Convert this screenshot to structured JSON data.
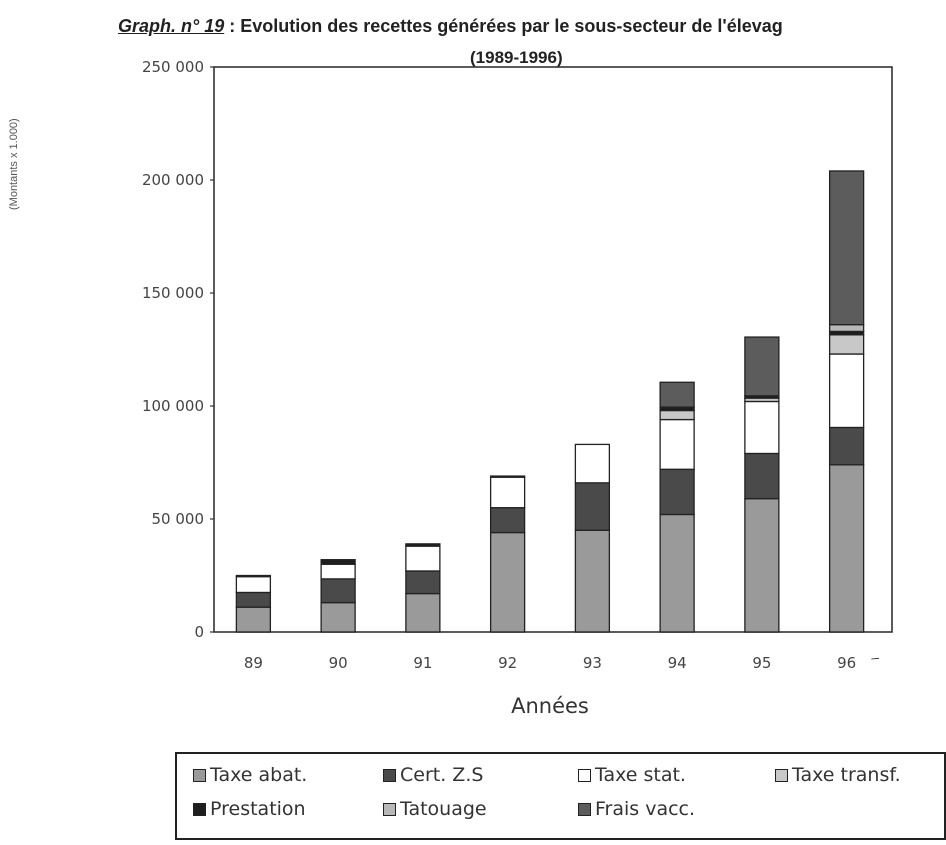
{
  "page": {
    "side_label": "(Montants x 1.000)",
    "title_prefix": "Graph. n° 19",
    "title_sep": " : ",
    "title_text": "Evolution des recettes générées par le sous-secteur de l'élevag",
    "title_years": "(1989-1996)"
  },
  "chart_data": {
    "type": "bar",
    "stacked": true,
    "title": "Evolution des recettes générées par le sous-secteur de l'élevag (1989-1996)",
    "xlabel": "Années",
    "ylabel": "",
    "ylim": [
      0,
      250000
    ],
    "yticks": [
      0,
      50000,
      100000,
      150000,
      200000,
      250000
    ],
    "ytick_labels": [
      "0",
      "50 000",
      "100 000",
      "150 000",
      "200 000",
      "250 000"
    ],
    "categories": [
      "89",
      "90",
      "91",
      "92",
      "93",
      "94",
      "95",
      "96"
    ],
    "legend_position": "bottom",
    "series": [
      {
        "name": "Taxe abat.",
        "color": "#9a9a9a",
        "values": [
          11000,
          13000,
          17000,
          44000,
          45000,
          52000,
          59000,
          74000
        ]
      },
      {
        "name": "Cert. Z.S",
        "color": "#4a4a4a",
        "values": [
          6500,
          10500,
          10000,
          11000,
          21000,
          20000,
          20000,
          16500
        ]
      },
      {
        "name": "Taxe stat.",
        "color": "#ffffff",
        "values": [
          7000,
          6500,
          11000,
          13500,
          17000,
          22000,
          23000,
          32500
        ]
      },
      {
        "name": "Taxe transf.",
        "color": "#c8c8c8",
        "values": [
          0,
          0,
          0,
          0,
          0,
          4000,
          1500,
          8500
        ]
      },
      {
        "name": "Prestation",
        "color": "#1e1e1e",
        "values": [
          500,
          2000,
          1000,
          500,
          0,
          1500,
          1000,
          1500
        ]
      },
      {
        "name": "Tatouage",
        "color": "#b8b8b8",
        "values": [
          0,
          0,
          0,
          0,
          0,
          0,
          0,
          3000
        ]
      },
      {
        "name": "Frais vacc.",
        "color": "#5c5c5c",
        "values": [
          0,
          0,
          0,
          0,
          0,
          11000,
          26000,
          68000
        ]
      }
    ]
  }
}
